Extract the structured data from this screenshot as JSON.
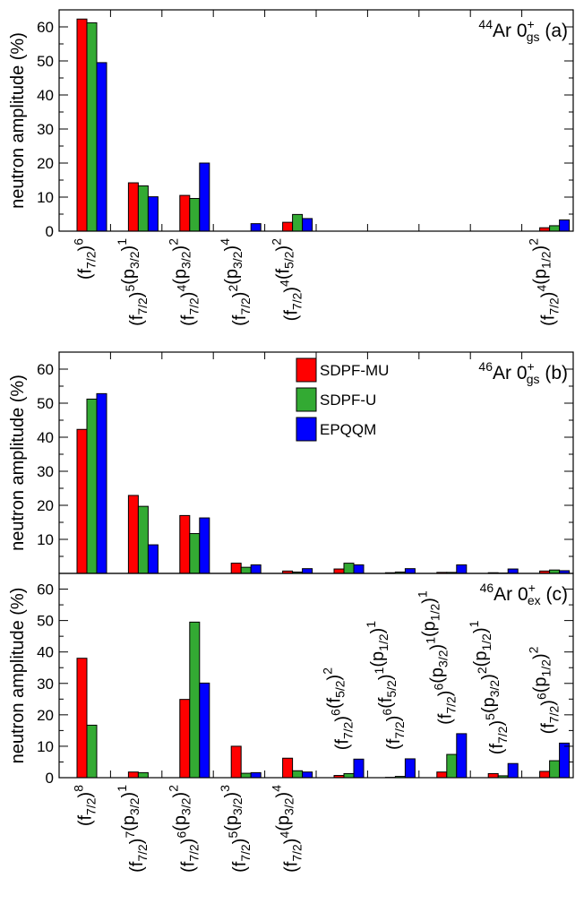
{
  "colors": {
    "SDPF-MU": "#ff0000",
    "SDPF-U": "#33aa33",
    "EPQQM": "#0000ff"
  },
  "legend": {
    "placement": "top-right of panel (b)",
    "items": [
      "SDPF-MU",
      "SDPF-U",
      "EPQQM"
    ]
  },
  "chart_data": [
    {
      "id": "a",
      "type": "bar",
      "panel_label": "(a)",
      "nucleus": {
        "mass": "44",
        "element": "Ar",
        "state": "0",
        "sup": "+",
        "sub": "gs"
      },
      "ylabel": "neutron amplitude (%)",
      "ylim": [
        0,
        65
      ],
      "yticks": [
        0,
        10,
        20,
        30,
        40,
        50,
        60
      ],
      "categories": [
        "(f7/2)^6",
        "(f7/2)^5(p3/2)^1",
        "(f7/2)^4(p3/2)^2",
        "(f7/2)^2(p3/2)^4",
        "(f7/2)^4(f5/2)^2",
        "",
        "",
        "",
        "",
        "(f7/2)^4(p1/2)^2"
      ],
      "series": [
        {
          "name": "SDPF-MU",
          "values": [
            62.3,
            14.2,
            10.5,
            0,
            2.6,
            0,
            0,
            0,
            0,
            1.0
          ]
        },
        {
          "name": "SDPF-U",
          "values": [
            61.2,
            13.3,
            9.6,
            0,
            4.9,
            0,
            0,
            0,
            0,
            1.6
          ]
        },
        {
          "name": "EPQQM",
          "values": [
            49.5,
            10.1,
            20.0,
            2.2,
            3.7,
            0,
            0,
            0,
            0,
            3.3
          ]
        }
      ]
    },
    {
      "id": "b",
      "type": "bar",
      "panel_label": "(b)",
      "nucleus": {
        "mass": "46",
        "element": "Ar",
        "state": "0",
        "sup": "+",
        "sub": "gs"
      },
      "ylabel": "neutron amplitude (%)",
      "ylim": [
        0,
        65
      ],
      "yticks": [
        10,
        20,
        30,
        40,
        50,
        60
      ],
      "series": [
        {
          "name": "SDPF-MU",
          "values": [
            42.3,
            22.9,
            17.0,
            3.0,
            0.7,
            1.3,
            0.2,
            0.3,
            0.2,
            0.7
          ]
        },
        {
          "name": "SDPF-U",
          "values": [
            51.2,
            19.7,
            11.7,
            1.8,
            0.4,
            3.0,
            0.4,
            0.3,
            0.1,
            1.0
          ]
        },
        {
          "name": "EPQQM",
          "values": [
            52.8,
            8.4,
            16.3,
            2.5,
            1.4,
            2.5,
            1.4,
            2.5,
            1.3,
            0.8
          ]
        }
      ]
    },
    {
      "id": "c",
      "type": "bar",
      "panel_label": "(c)",
      "nucleus": {
        "mass": "46",
        "element": "Ar",
        "state": "0",
        "sup": "+",
        "sub": "ex"
      },
      "ylabel": "neutron amplitude (%)",
      "ylim": [
        0,
        65
      ],
      "yticks": [
        0,
        10,
        20,
        30,
        40,
        50,
        60
      ],
      "categories": [
        "(f7/2)^8",
        "(f7/2)^7(p3/2)^1",
        "(f7/2)^6(p3/2)^2",
        "(f7/2)^5(p3/2)^3",
        "(f7/2)^4(p3/2)^4",
        "(f7/2)^6(f5/2)^2",
        "(f7/2)^6(f5/2)^1(p1/2)^1",
        "(f7/2)^6(p3/2)^1(p1/2)^1",
        "(f7/2)^5(p3/2)^2(p1/2)^1",
        "(f7/2)^6(p1/2)^2"
      ],
      "series": [
        {
          "name": "SDPF-MU",
          "values": [
            38.0,
            1.8,
            24.9,
            10.0,
            6.2,
            0.7,
            0.1,
            1.8,
            1.3,
            2.0
          ]
        },
        {
          "name": "SDPF-U",
          "values": [
            16.7,
            1.6,
            49.5,
            1.4,
            2.2,
            1.3,
            0.4,
            7.4,
            0.6,
            5.4
          ]
        },
        {
          "name": "EPQQM",
          "values": [
            0,
            0,
            30.1,
            1.6,
            1.8,
            5.9,
            6.0,
            14.0,
            4.5,
            11.0
          ]
        }
      ]
    }
  ],
  "config_labels": {
    "f72": {
      "base": "f",
      "sub": "7/2"
    },
    "f52": {
      "base": "f",
      "sub": "5/2"
    },
    "p32": {
      "base": "p",
      "sub": "3/2"
    },
    "p12": {
      "base": "p",
      "sub": "1/2"
    }
  }
}
